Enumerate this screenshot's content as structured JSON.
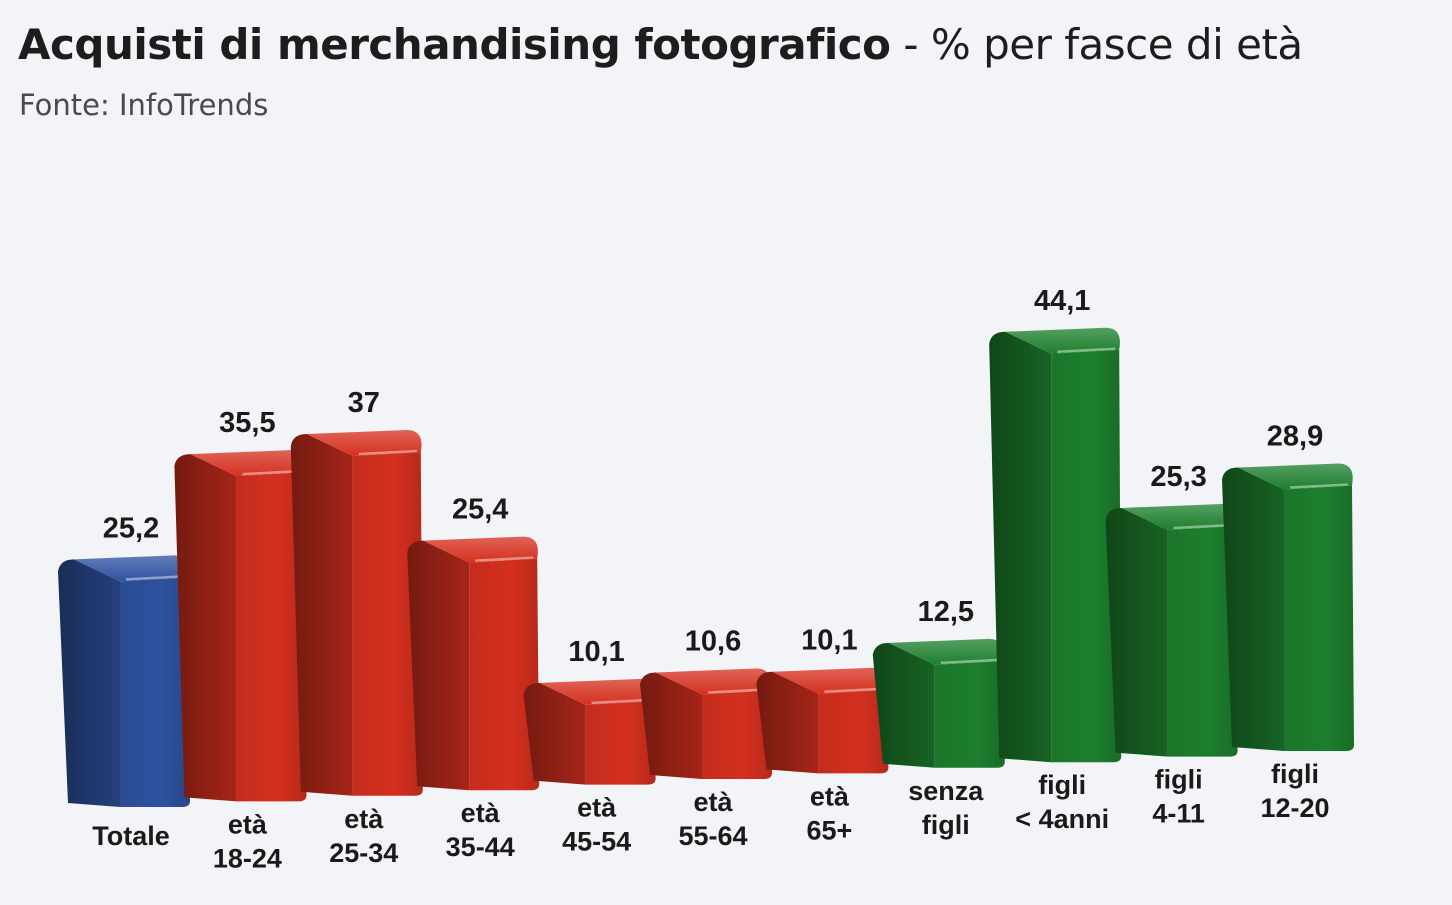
{
  "header": {
    "title_main": "Acquisti di merchandising fotografico",
    "title_rest": " - % per fasce di età",
    "source": "Fonte: InfoTrends"
  },
  "chart_data": {
    "type": "bar",
    "title": "Acquisti di merchandising fotografico - % per fasce di età",
    "categories": [
      [
        "Totale"
      ],
      [
        "età",
        "18-24"
      ],
      [
        "età",
        "25-34"
      ],
      [
        "età",
        "35-44"
      ],
      [
        "età",
        "45-54"
      ],
      [
        "età",
        "55-64"
      ],
      [
        "età",
        "65+"
      ],
      [
        "senza",
        "figli"
      ],
      [
        "figli",
        "< 4anni"
      ],
      [
        "figli",
        "4-11"
      ],
      [
        "figli",
        "12-20"
      ]
    ],
    "values": [
      25.2,
      35.5,
      37,
      25.4,
      10.1,
      10.6,
      10.1,
      12.5,
      44.1,
      25.3,
      28.9
    ],
    "value_labels": [
      "25,2",
      "35,5",
      "37",
      "25,4",
      "10,1",
      "10,6",
      "10,1",
      "12,5",
      "44,1",
      "25,3",
      "28,9"
    ],
    "groups": [
      "total",
      "age",
      "age",
      "age",
      "age",
      "age",
      "age",
      "children",
      "children",
      "children",
      "children"
    ],
    "colors": {
      "total": "#2f52a0",
      "age": "#d5301f",
      "children": "#1d7f2e"
    },
    "xlabel": "",
    "ylabel": "",
    "ylim": [
      0,
      50
    ],
    "grid": false,
    "legend": "none"
  }
}
